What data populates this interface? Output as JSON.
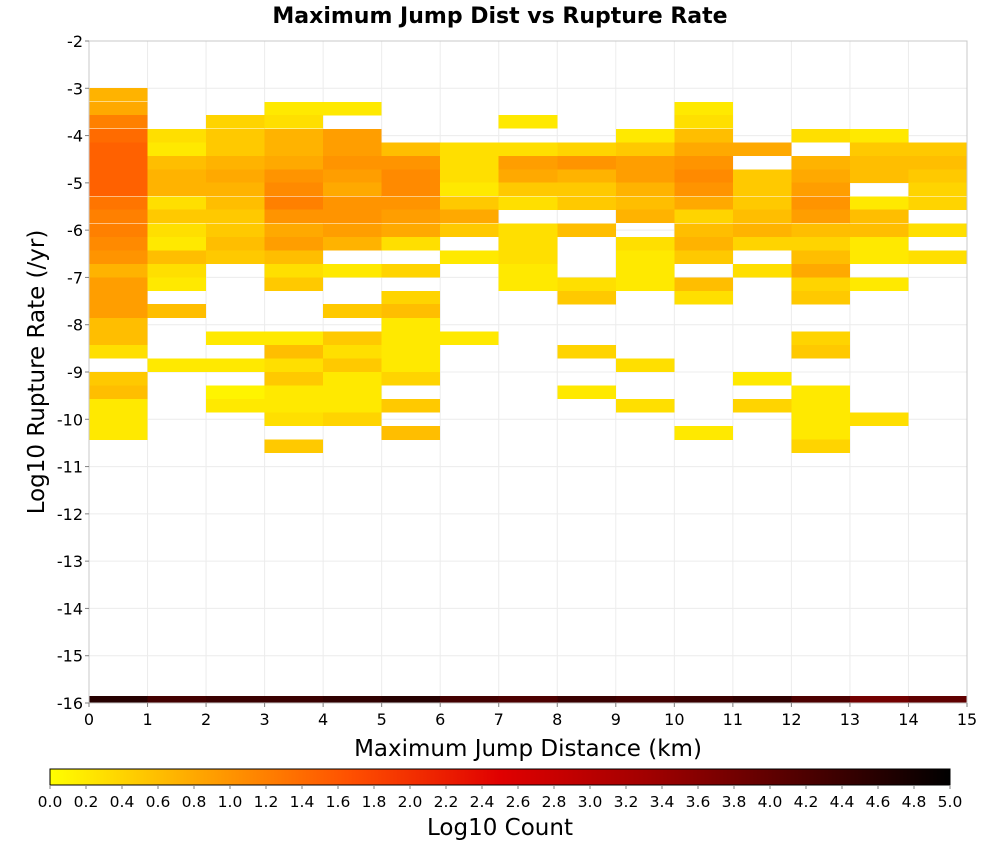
{
  "chart_data": {
    "type": "heatmap",
    "title": "Maximum Jump Dist vs Rupture Rate",
    "xlabel": "Maximum Jump Distance (km)",
    "ylabel": "Log10 Rupture Rate (/yr)",
    "xlim": [
      0,
      15
    ],
    "ylim": [
      -16,
      -2
    ],
    "x_ticks": [
      "0",
      "1",
      "2",
      "3",
      "4",
      "5",
      "6",
      "7",
      "8",
      "9",
      "10",
      "11",
      "12",
      "13",
      "14",
      "15"
    ],
    "y_ticks": [
      "-2",
      "-3",
      "-4",
      "-5",
      "-6",
      "-7",
      "-8",
      "-9",
      "-10",
      "-11",
      "-12",
      "-13",
      "-14",
      "-15",
      "-16"
    ],
    "x_bin_width": 1,
    "y_bin_height": 0.2857,
    "grid": true,
    "colorscale": {
      "label": "Log10 Count",
      "min": 0.0,
      "max": 5.0,
      "ticks": [
        "0.0",
        "0.2",
        "0.4",
        "0.6",
        "0.8",
        "1.0",
        "1.2",
        "1.4",
        "1.6",
        "1.8",
        "2.0",
        "2.2",
        "2.4",
        "2.6",
        "2.8",
        "3.0",
        "3.2",
        "3.4",
        "3.6",
        "3.8",
        "4.0",
        "4.2",
        "4.4",
        "4.6",
        "4.8",
        "5.0"
      ],
      "colors": [
        "#ffff00",
        "#ffa500",
        "#ff5000",
        "#e00000",
        "#a00000",
        "#500000",
        "#000000"
      ]
    },
    "columns": [
      {
        "x": 0,
        "cells": [
          [
            "-3.14",
            0.7
          ],
          [
            "-3.43",
            0.8
          ],
          [
            "-3.71",
            1.2
          ],
          [
            "-4.0",
            1.4
          ],
          [
            "-4.29",
            1.5
          ],
          [
            "-4.57",
            1.5
          ],
          [
            "-4.86",
            1.5
          ],
          [
            "-5.14",
            1.5
          ],
          [
            "-5.43",
            1.3
          ],
          [
            "-5.71",
            1.2
          ],
          [
            "-6.0",
            1.2
          ],
          [
            "-6.29",
            1.1
          ],
          [
            "-6.57",
            1.0
          ],
          [
            "-6.86",
            0.7
          ],
          [
            "-7.14",
            0.9
          ],
          [
            "-7.43",
            0.9
          ],
          [
            "-7.71",
            0.9
          ],
          [
            "-8.0",
            0.6
          ],
          [
            "-8.29",
            0.6
          ],
          [
            "-8.57",
            0.3
          ],
          [
            "-9.14",
            0.5
          ],
          [
            "-9.43",
            0.6
          ],
          [
            "-9.71",
            0.2
          ],
          [
            "-10.0",
            0.2
          ],
          [
            "-10.29",
            0.2
          ],
          [
            "-16.0",
            4.6
          ]
        ]
      },
      {
        "x": 1,
        "cells": [
          [
            "-4.0",
            0.3
          ],
          [
            "-4.29",
            0.2
          ],
          [
            "-4.57",
            0.6
          ],
          [
            "-4.86",
            0.7
          ],
          [
            "-5.14",
            0.7
          ],
          [
            "-5.43",
            0.3
          ],
          [
            "-5.71",
            0.5
          ],
          [
            "-6.0",
            0.3
          ],
          [
            "-6.29",
            0.2
          ],
          [
            "-6.57",
            0.6
          ],
          [
            "-6.86",
            0.3
          ],
          [
            "-7.14",
            0.2
          ],
          [
            "-7.71",
            0.6
          ],
          [
            "-8.86",
            0.2
          ],
          [
            "-16.0",
            4.3
          ]
        ]
      },
      {
        "x": 2,
        "cells": [
          [
            "-3.71",
            0.4
          ],
          [
            "-4.0",
            0.5
          ],
          [
            "-4.29",
            0.5
          ],
          [
            "-4.57",
            0.7
          ],
          [
            "-4.86",
            0.8
          ],
          [
            "-5.14",
            0.7
          ],
          [
            "-5.43",
            0.6
          ],
          [
            "-5.71",
            0.5
          ],
          [
            "-6.0",
            0.5
          ],
          [
            "-6.29",
            0.6
          ],
          [
            "-6.57",
            0.5
          ],
          [
            "-8.29",
            0.2
          ],
          [
            "-8.86",
            0.2
          ],
          [
            "-9.43",
            0.1
          ],
          [
            "-9.71",
            0.2
          ],
          [
            "-16.0",
            4.4
          ]
        ]
      },
      {
        "x": 3,
        "cells": [
          [
            "-3.43",
            0.2
          ],
          [
            "-3.71",
            0.3
          ],
          [
            "-4.0",
            0.7
          ],
          [
            "-4.29",
            0.7
          ],
          [
            "-4.57",
            0.8
          ],
          [
            "-4.86",
            1.0
          ],
          [
            "-5.14",
            1.1
          ],
          [
            "-5.43",
            1.2
          ],
          [
            "-5.71",
            1.0
          ],
          [
            "-6.0",
            0.8
          ],
          [
            "-6.29",
            0.9
          ],
          [
            "-6.57",
            0.6
          ],
          [
            "-6.86",
            0.3
          ],
          [
            "-7.14",
            0.5
          ],
          [
            "-8.29",
            0.2
          ],
          [
            "-8.57",
            0.6
          ],
          [
            "-8.86",
            0.3
          ],
          [
            "-9.14",
            0.5
          ],
          [
            "-9.43",
            0.2
          ],
          [
            "-9.71",
            0.2
          ],
          [
            "-10.0",
            0.3
          ],
          [
            "-10.57",
            0.5
          ],
          [
            "-16.0",
            4.4
          ]
        ]
      },
      {
        "x": 4,
        "cells": [
          [
            "-3.43",
            0.2
          ],
          [
            "-4.0",
            0.9
          ],
          [
            "-4.29",
            0.9
          ],
          [
            "-4.57",
            1.0
          ],
          [
            "-4.86",
            0.9
          ],
          [
            "-5.14",
            0.8
          ],
          [
            "-5.43",
            1.0
          ],
          [
            "-5.71",
            1.0
          ],
          [
            "-6.0",
            0.9
          ],
          [
            "-6.29",
            0.7
          ],
          [
            "-6.86",
            0.2
          ],
          [
            "-7.71",
            0.5
          ],
          [
            "-8.29",
            0.5
          ],
          [
            "-8.57",
            0.3
          ],
          [
            "-8.86",
            0.5
          ],
          [
            "-9.14",
            0.2
          ],
          [
            "-9.43",
            0.2
          ],
          [
            "-9.71",
            0.2
          ],
          [
            "-10.0",
            0.4
          ],
          [
            "-16.0",
            4.5
          ]
        ]
      },
      {
        "x": 5,
        "cells": [
          [
            "-4.29",
            0.6
          ],
          [
            "-4.57",
            1.0
          ],
          [
            "-4.86",
            1.1
          ],
          [
            "-5.14",
            1.1
          ],
          [
            "-5.43",
            1.0
          ],
          [
            "-5.71",
            0.9
          ],
          [
            "-6.0",
            0.8
          ],
          [
            "-6.29",
            0.3
          ],
          [
            "-6.86",
            0.4
          ],
          [
            "-7.43",
            0.4
          ],
          [
            "-7.71",
            0.6
          ],
          [
            "-8.0",
            0.2
          ],
          [
            "-8.29",
            0.2
          ],
          [
            "-8.57",
            0.2
          ],
          [
            "-8.86",
            0.2
          ],
          [
            "-9.14",
            0.4
          ],
          [
            "-9.71",
            0.5
          ],
          [
            "-10.29",
            0.6
          ],
          [
            "-16.0",
            4.6
          ]
        ]
      },
      {
        "x": 6,
        "cells": [
          [
            "-4.29",
            0.3
          ],
          [
            "-4.57",
            0.3
          ],
          [
            "-4.86",
            0.3
          ],
          [
            "-5.14",
            0.2
          ],
          [
            "-5.43",
            0.5
          ],
          [
            "-5.71",
            0.8
          ],
          [
            "-6.0",
            0.5
          ],
          [
            "-6.57",
            0.2
          ],
          [
            "-8.29",
            0.2
          ],
          [
            "-16.0",
            4.3
          ]
        ]
      },
      {
        "x": 7,
        "cells": [
          [
            "-3.71",
            0.2
          ],
          [
            "-4.29",
            0.3
          ],
          [
            "-4.57",
            0.9
          ],
          [
            "-4.86",
            0.8
          ],
          [
            "-5.14",
            0.5
          ],
          [
            "-5.43",
            0.3
          ],
          [
            "-6.0",
            0.3
          ],
          [
            "-6.29",
            0.3
          ],
          [
            "-6.57",
            0.3
          ],
          [
            "-6.86",
            0.2
          ],
          [
            "-7.14",
            0.2
          ],
          [
            "-16.0",
            4.2
          ]
        ]
      },
      {
        "x": 8,
        "cells": [
          [
            "-4.29",
            0.4
          ],
          [
            "-4.57",
            1.0
          ],
          [
            "-4.86",
            0.7
          ],
          [
            "-5.14",
            0.5
          ],
          [
            "-5.43",
            0.5
          ],
          [
            "-6.0",
            0.6
          ],
          [
            "-7.14",
            0.3
          ],
          [
            "-7.43",
            0.5
          ],
          [
            "-8.57",
            0.4
          ],
          [
            "-9.43",
            0.2
          ],
          [
            "-16.0",
            4.4
          ]
        ]
      },
      {
        "x": 9,
        "cells": [
          [
            "-4.0",
            0.2
          ],
          [
            "-4.29",
            0.5
          ],
          [
            "-4.57",
            0.9
          ],
          [
            "-4.86",
            0.9
          ],
          [
            "-5.14",
            0.7
          ],
          [
            "-5.43",
            0.6
          ],
          [
            "-5.71",
            0.7
          ],
          [
            "-6.29",
            0.3
          ],
          [
            "-6.57",
            0.2
          ],
          [
            "-6.86",
            0.2
          ],
          [
            "-7.14",
            0.2
          ],
          [
            "-8.86",
            0.3
          ],
          [
            "-9.71",
            0.3
          ],
          [
            "-16.0",
            4.3
          ]
        ]
      },
      {
        "x": 10,
        "cells": [
          [
            "-3.43",
            0.2
          ],
          [
            "-3.71",
            0.3
          ],
          [
            "-4.0",
            0.6
          ],
          [
            "-4.29",
            0.8
          ],
          [
            "-4.57",
            1.0
          ],
          [
            "-4.86",
            1.1
          ],
          [
            "-5.14",
            1.0
          ],
          [
            "-5.43",
            0.8
          ],
          [
            "-5.71",
            0.4
          ],
          [
            "-6.0",
            0.6
          ],
          [
            "-6.29",
            0.7
          ],
          [
            "-6.57",
            0.5
          ],
          [
            "-7.14",
            0.6
          ],
          [
            "-7.43",
            0.3
          ],
          [
            "-10.29",
            0.2
          ],
          [
            "-16.0",
            4.4
          ]
        ]
      },
      {
        "x": 11,
        "cells": [
          [
            "-4.29",
            0.8
          ],
          [
            "-4.86",
            0.5
          ],
          [
            "-5.14",
            0.5
          ],
          [
            "-5.43",
            0.5
          ],
          [
            "-5.71",
            0.6
          ],
          [
            "-6.0",
            0.7
          ],
          [
            "-6.29",
            0.4
          ],
          [
            "-6.86",
            0.3
          ],
          [
            "-9.14",
            0.2
          ],
          [
            "-9.71",
            0.4
          ],
          [
            "-16.0",
            4.5
          ]
        ]
      },
      {
        "x": 12,
        "cells": [
          [
            "-4.0",
            0.3
          ],
          [
            "-4.57",
            0.7
          ],
          [
            "-4.86",
            0.8
          ],
          [
            "-5.14",
            0.9
          ],
          [
            "-5.43",
            1.0
          ],
          [
            "-5.71",
            0.9
          ],
          [
            "-6.0",
            0.6
          ],
          [
            "-6.29",
            0.4
          ],
          [
            "-6.57",
            0.6
          ],
          [
            "-6.86",
            0.8
          ],
          [
            "-7.14",
            0.4
          ],
          [
            "-7.43",
            0.5
          ],
          [
            "-8.29",
            0.4
          ],
          [
            "-8.57",
            0.5
          ],
          [
            "-9.43",
            0.2
          ],
          [
            "-9.71",
            0.2
          ],
          [
            "-10.0",
            0.2
          ],
          [
            "-10.29",
            0.2
          ],
          [
            "-10.57",
            0.4
          ],
          [
            "-16.0",
            4.2
          ]
        ]
      },
      {
        "x": 13,
        "cells": [
          [
            "-4.0",
            0.2
          ],
          [
            "-4.29",
            0.5
          ],
          [
            "-4.57",
            0.6
          ],
          [
            "-4.86",
            0.6
          ],
          [
            "-5.43",
            0.2
          ],
          [
            "-5.71",
            0.6
          ],
          [
            "-6.0",
            0.6
          ],
          [
            "-6.29",
            0.2
          ],
          [
            "-6.57",
            0.2
          ],
          [
            "-7.14",
            0.2
          ],
          [
            "-10.0",
            0.3
          ],
          [
            "-16.0",
            3.8
          ]
        ]
      },
      {
        "x": 14,
        "cells": [
          [
            "-4.29",
            0.5
          ],
          [
            "-4.57",
            0.6
          ],
          [
            "-4.86",
            0.5
          ],
          [
            "-5.14",
            0.4
          ],
          [
            "-5.43",
            0.4
          ],
          [
            "-6.0",
            0.3
          ],
          [
            "-6.57",
            0.3
          ],
          [
            "-16.0",
            4.0
          ]
        ]
      }
    ]
  }
}
